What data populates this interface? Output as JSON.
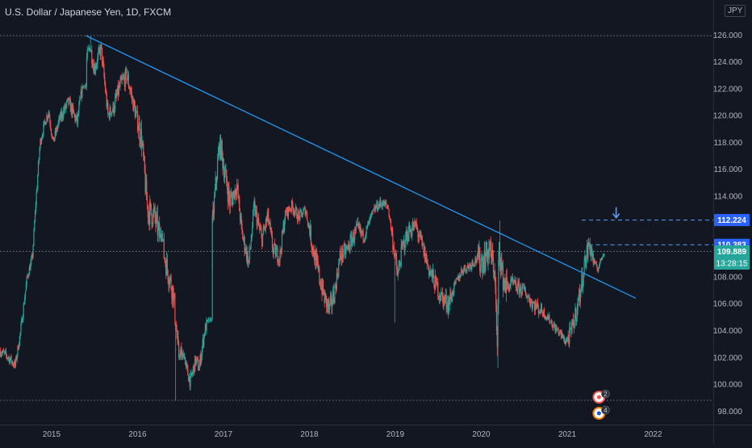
{
  "legend": {
    "title": "U.S. Dollar / Japanese Yen, 1D, FXCM"
  },
  "currency": "JPY",
  "colors": {
    "background": "#131722",
    "up": "#26a69a",
    "down": "#ef5350",
    "trendline": "#2196f3",
    "axis_text": "#b2b5be",
    "dotted": "#787b86"
  },
  "chart_data": {
    "type": "candlestick",
    "title": "U.S. Dollar / Japanese Yen, 1D, FXCM",
    "xlim": [
      2014.4,
      2022.7
    ],
    "ylim": [
      97.0,
      128.6
    ],
    "x_ticks": [
      "2015",
      "2016",
      "2017",
      "2018",
      "2019",
      "2020",
      "2021",
      "2022"
    ],
    "y_ticks": [
      "98.000",
      "100.000",
      "102.000",
      "104.000",
      "106.000",
      "108.000",
      "110.000",
      "112.000",
      "114.000",
      "116.000",
      "118.000",
      "120.000",
      "122.000",
      "124.000",
      "126.000"
    ],
    "price_path": [
      [
        2014.4,
        102.5
      ],
      [
        2014.5,
        102.0
      ],
      [
        2014.58,
        101.4
      ],
      [
        2014.64,
        103.8
      ],
      [
        2014.72,
        108.0
      ],
      [
        2014.78,
        109.4
      ],
      [
        2014.82,
        113.5
      ],
      [
        2014.87,
        118.0
      ],
      [
        2014.93,
        119.6
      ],
      [
        2014.97,
        120.3
      ],
      [
        2015.02,
        118.0
      ],
      [
        2015.1,
        119.8
      ],
      [
        2015.2,
        121.0
      ],
      [
        2015.3,
        119.5
      ],
      [
        2015.4,
        123.8
      ],
      [
        2015.45,
        125.2
      ],
      [
        2015.5,
        123.5
      ],
      [
        2015.58,
        125.0
      ],
      [
        2015.66,
        120.0
      ],
      [
        2015.72,
        120.5
      ],
      [
        2015.8,
        122.2
      ],
      [
        2015.88,
        123.0
      ],
      [
        2015.95,
        121.0
      ],
      [
        2016.05,
        118.3
      ],
      [
        2016.12,
        113.0
      ],
      [
        2016.2,
        112.5
      ],
      [
        2016.28,
        110.5
      ],
      [
        2016.35,
        108.6
      ],
      [
        2016.42,
        106.8
      ],
      [
        2016.48,
        102.0
      ],
      [
        2016.55,
        101.6
      ],
      [
        2016.62,
        100.2
      ],
      [
        2016.68,
        101.8
      ],
      [
        2016.72,
        101.2
      ],
      [
        2016.78,
        103.8
      ],
      [
        2016.82,
        104.8
      ],
      [
        2016.86,
        110.5
      ],
      [
        2016.9,
        113.8
      ],
      [
        2016.96,
        118.1
      ],
      [
        2017.0,
        116.5
      ],
      [
        2017.08,
        113.5
      ],
      [
        2017.16,
        114.8
      ],
      [
        2017.22,
        111.2
      ],
      [
        2017.3,
        109.0
      ],
      [
        2017.36,
        113.2
      ],
      [
        2017.45,
        110.8
      ],
      [
        2017.52,
        112.5
      ],
      [
        2017.58,
        110.0
      ],
      [
        2017.66,
        109.5
      ],
      [
        2017.72,
        112.6
      ],
      [
        2017.8,
        113.3
      ],
      [
        2017.88,
        112.4
      ],
      [
        2017.96,
        113.0
      ],
      [
        2018.04,
        110.3
      ],
      [
        2018.1,
        108.5
      ],
      [
        2018.18,
        106.4
      ],
      [
        2018.24,
        105.5
      ],
      [
        2018.3,
        107.0
      ],
      [
        2018.36,
        109.5
      ],
      [
        2018.44,
        110.0
      ],
      [
        2018.5,
        110.8
      ],
      [
        2018.56,
        111.5
      ],
      [
        2018.64,
        111.0
      ],
      [
        2018.72,
        112.4
      ],
      [
        2018.78,
        113.2
      ],
      [
        2018.84,
        113.5
      ],
      [
        2018.92,
        113.2
      ],
      [
        2019.0,
        109.5
      ],
      [
        2019.03,
        108.0
      ],
      [
        2019.08,
        110.0
      ],
      [
        2019.16,
        111.4
      ],
      [
        2019.24,
        111.8
      ],
      [
        2019.32,
        110.2
      ],
      [
        2019.4,
        108.5
      ],
      [
        2019.46,
        107.6
      ],
      [
        2019.54,
        106.5
      ],
      [
        2019.62,
        106.0
      ],
      [
        2019.7,
        107.4
      ],
      [
        2019.78,
        108.5
      ],
      [
        2019.86,
        108.8
      ],
      [
        2019.94,
        109.3
      ],
      [
        2020.02,
        109.2
      ],
      [
        2020.1,
        110.0
      ],
      [
        2020.16,
        108.5
      ],
      [
        2020.19,
        102.5
      ],
      [
        2020.21,
        110.5
      ],
      [
        2020.25,
        108.0
      ],
      [
        2020.3,
        107.2
      ],
      [
        2020.36,
        107.5
      ],
      [
        2020.42,
        107.2
      ],
      [
        2020.5,
        107.0
      ],
      [
        2020.58,
        106.2
      ],
      [
        2020.64,
        105.8
      ],
      [
        2020.72,
        105.4
      ],
      [
        2020.8,
        104.8
      ],
      [
        2020.86,
        104.2
      ],
      [
        2020.92,
        103.8
      ],
      [
        2020.98,
        103.2
      ],
      [
        2021.04,
        103.6
      ],
      [
        2021.1,
        105.2
      ],
      [
        2021.16,
        107.0
      ],
      [
        2021.2,
        108.8
      ],
      [
        2021.26,
        110.5
      ],
      [
        2021.32,
        109.0
      ],
      [
        2021.36,
        108.6
      ],
      [
        2021.4,
        109.3
      ],
      [
        2021.43,
        109.9
      ]
    ],
    "ranges": [
      {
        "x0": 2015.1,
        "x1": 2015.4,
        "lo": 117.0,
        "hi": 122.4
      },
      {
        "x0": 2015.4,
        "x1": 2015.68,
        "lo": 119.6,
        "hi": 125.9
      },
      {
        "x0": 2015.7,
        "x1": 2016.0,
        "lo": 116.5,
        "hi": 123.7
      },
      {
        "x0": 2016.0,
        "x1": 2016.3,
        "lo": 110.6,
        "hi": 121.5
      },
      {
        "x0": 2016.3,
        "x1": 2016.55,
        "lo": 101.8,
        "hi": 112.0
      },
      {
        "x0": 2016.55,
        "x1": 2016.86,
        "lo": 99.2,
        "hi": 105.0
      },
      {
        "x0": 2016.86,
        "x1": 2017.1,
        "lo": 108.6,
        "hi": 118.6
      },
      {
        "x0": 2017.1,
        "x1": 2017.4,
        "lo": 108.2,
        "hi": 115.4
      },
      {
        "x0": 2017.4,
        "x1": 2017.7,
        "lo": 107.6,
        "hi": 114.4
      },
      {
        "x0": 2017.7,
        "x1": 2018.0,
        "lo": 110.0,
        "hi": 114.7
      },
      {
        "x0": 2018.0,
        "x1": 2018.3,
        "lo": 104.7,
        "hi": 113.4
      },
      {
        "x0": 2018.3,
        "x1": 2018.6,
        "lo": 106.5,
        "hi": 113.2
      },
      {
        "x0": 2018.6,
        "x1": 2018.95,
        "lo": 110.2,
        "hi": 114.5
      },
      {
        "x0": 2018.95,
        "x1": 2019.3,
        "lo": 105.0,
        "hi": 112.4
      },
      {
        "x0": 2019.3,
        "x1": 2019.65,
        "lo": 104.6,
        "hi": 112.3
      },
      {
        "x0": 2019.65,
        "x1": 2019.95,
        "lo": 105.8,
        "hi": 110.0
      },
      {
        "x0": 2019.95,
        "x1": 2020.3,
        "lo": 101.2,
        "hi": 112.2
      },
      {
        "x0": 2020.3,
        "x1": 2020.7,
        "lo": 104.2,
        "hi": 109.8
      },
      {
        "x0": 2020.7,
        "x1": 2021.0,
        "lo": 102.6,
        "hi": 106.4
      },
      {
        "x0": 2021.0,
        "x1": 2021.3,
        "lo": 102.7,
        "hi": 110.9
      },
      {
        "x0": 2021.3,
        "x1": 2021.43,
        "lo": 107.5,
        "hi": 110.2
      }
    ],
    "extreme_wicks": [
      [
        2016.44,
        98.8
      ],
      [
        2018.99,
        104.6
      ],
      [
        2020.19,
        101.2
      ]
    ],
    "trendline": {
      "x0": 2015.4,
      "y0": 125.95,
      "x1": 2021.8,
      "y1": 106.4
    },
    "horizontal_levels": [
      {
        "y": 125.95,
        "style": "dotted"
      },
      {
        "y": 98.8,
        "style": "dotted"
      },
      {
        "y": 112.224,
        "style": "dashed",
        "x0": 2021.17,
        "label": "112.224",
        "label_color": "#2962ff"
      },
      {
        "y": 110.383,
        "style": "dashed",
        "x0": 2021.25,
        "label": "110.383",
        "label_color": "#2962ff"
      },
      {
        "y": 109.889,
        "style": "dotted",
        "label": "109.889",
        "label_color": "#26a69a"
      }
    ],
    "countdown": "13:28:15",
    "arrow_marker": {
      "x": 2021.57,
      "y": 112.7
    },
    "events": [
      {
        "x": 2021.37,
        "count": "2"
      },
      {
        "x": 2021.37,
        "count": "4"
      }
    ]
  }
}
